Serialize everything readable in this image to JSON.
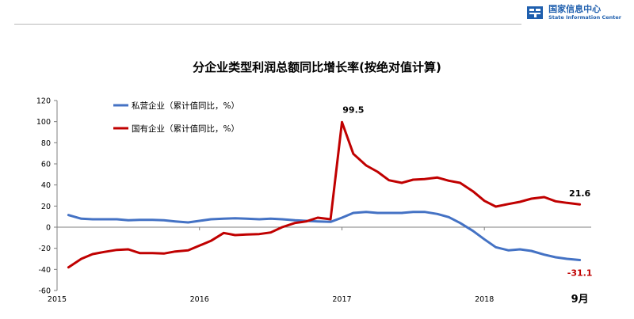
{
  "header": {
    "logo_cn": "国家信息中心",
    "logo_en": "State Information Center"
  },
  "colors": {
    "private": "#4472c4",
    "state": "#c00000",
    "logo": "#1f5fae"
  },
  "chart_data": {
    "type": "line",
    "title": "分企业类型利润总额同比增长率(按绝对值计算)",
    "xlabel": "",
    "ylabel": "",
    "ylim": [
      -60,
      120
    ],
    "yticks": [
      -60,
      -40,
      -20,
      0,
      20,
      40,
      60,
      80,
      100,
      120
    ],
    "xlim": [
      2015,
      2018.75
    ],
    "xticks": [
      2015,
      2016,
      2017,
      2018
    ],
    "x_tick_labels": [
      "2015",
      "2016",
      "2017",
      "2018"
    ],
    "end_label": "9月",
    "grid": false,
    "legend_position": "top-left",
    "series": [
      {
        "name": "私营企业（累计值同比，%）",
        "color_key": "private",
        "x": [
          2015.08,
          2015.17,
          2015.25,
          2015.33,
          2015.42,
          2015.5,
          2015.58,
          2015.67,
          2015.75,
          2015.83,
          2015.92,
          2016.0,
          2016.08,
          2016.17,
          2016.25,
          2016.33,
          2016.42,
          2016.5,
          2016.58,
          2016.67,
          2016.75,
          2016.83,
          2016.92,
          2017.0,
          2017.08,
          2017.17,
          2017.25,
          2017.33,
          2017.42,
          2017.5,
          2017.58,
          2017.67,
          2017.75,
          2017.83,
          2017.92,
          2018.0,
          2018.08,
          2018.17,
          2018.25,
          2018.33,
          2018.42,
          2018.5,
          2018.58,
          2018.67
        ],
        "values": [
          11.5,
          8.0,
          7.5,
          7.5,
          7.5,
          6.5,
          7.0,
          7.0,
          6.5,
          5.5,
          4.5,
          6.0,
          7.5,
          8.0,
          8.5,
          8.0,
          7.5,
          8.0,
          7.5,
          6.5,
          6.0,
          5.5,
          5.0,
          9.0,
          13.5,
          14.5,
          13.5,
          13.5,
          13.5,
          14.5,
          14.5,
          12.5,
          9.5,
          4.0,
          -3.5,
          -11.5,
          -19.0,
          -22.0,
          -21.0,
          -22.5,
          -26.0,
          -28.5,
          -30.0,
          -31.1
        ]
      },
      {
        "name": "国有企业（累计值同比，%）",
        "color_key": "state",
        "x": [
          2015.08,
          2015.17,
          2015.25,
          2015.33,
          2015.42,
          2015.5,
          2015.58,
          2015.67,
          2015.75,
          2015.83,
          2015.92,
          2016.0,
          2016.08,
          2016.17,
          2016.25,
          2016.33,
          2016.42,
          2016.5,
          2016.58,
          2016.67,
          2016.75,
          2016.83,
          2016.92,
          2017.0,
          2017.08,
          2017.17,
          2017.25,
          2017.33,
          2017.42,
          2017.5,
          2017.58,
          2017.67,
          2017.75,
          2017.83,
          2017.92,
          2018.0,
          2018.08,
          2018.17,
          2018.25,
          2018.33,
          2018.42,
          2018.5,
          2018.58,
          2018.67
        ],
        "values": [
          -38.0,
          -30.0,
          -25.5,
          -23.5,
          -21.5,
          -21.0,
          -24.5,
          -24.5,
          -25.0,
          -23.0,
          -22.0,
          -17.5,
          -13.0,
          -5.5,
          -7.5,
          -7.0,
          -6.5,
          -5.0,
          0.0,
          4.0,
          5.5,
          9.0,
          7.5,
          99.5,
          69.5,
          58.5,
          52.5,
          44.5,
          42.0,
          45.0,
          45.5,
          47.0,
          44.0,
          42.0,
          34.0,
          25.0,
          19.5,
          22.0,
          24.0,
          27.0,
          28.5,
          24.5,
          23.0,
          21.6
        ]
      }
    ],
    "annotations": [
      {
        "text": "99.5",
        "x": 2017.08,
        "y": 99.5,
        "color_key": ""
      },
      {
        "text": "21.6",
        "x": 2018.67,
        "y": 21.6,
        "color_key": ""
      },
      {
        "text": "-31.1",
        "x": 2018.67,
        "y": -31.1,
        "color_key": "state"
      }
    ]
  }
}
